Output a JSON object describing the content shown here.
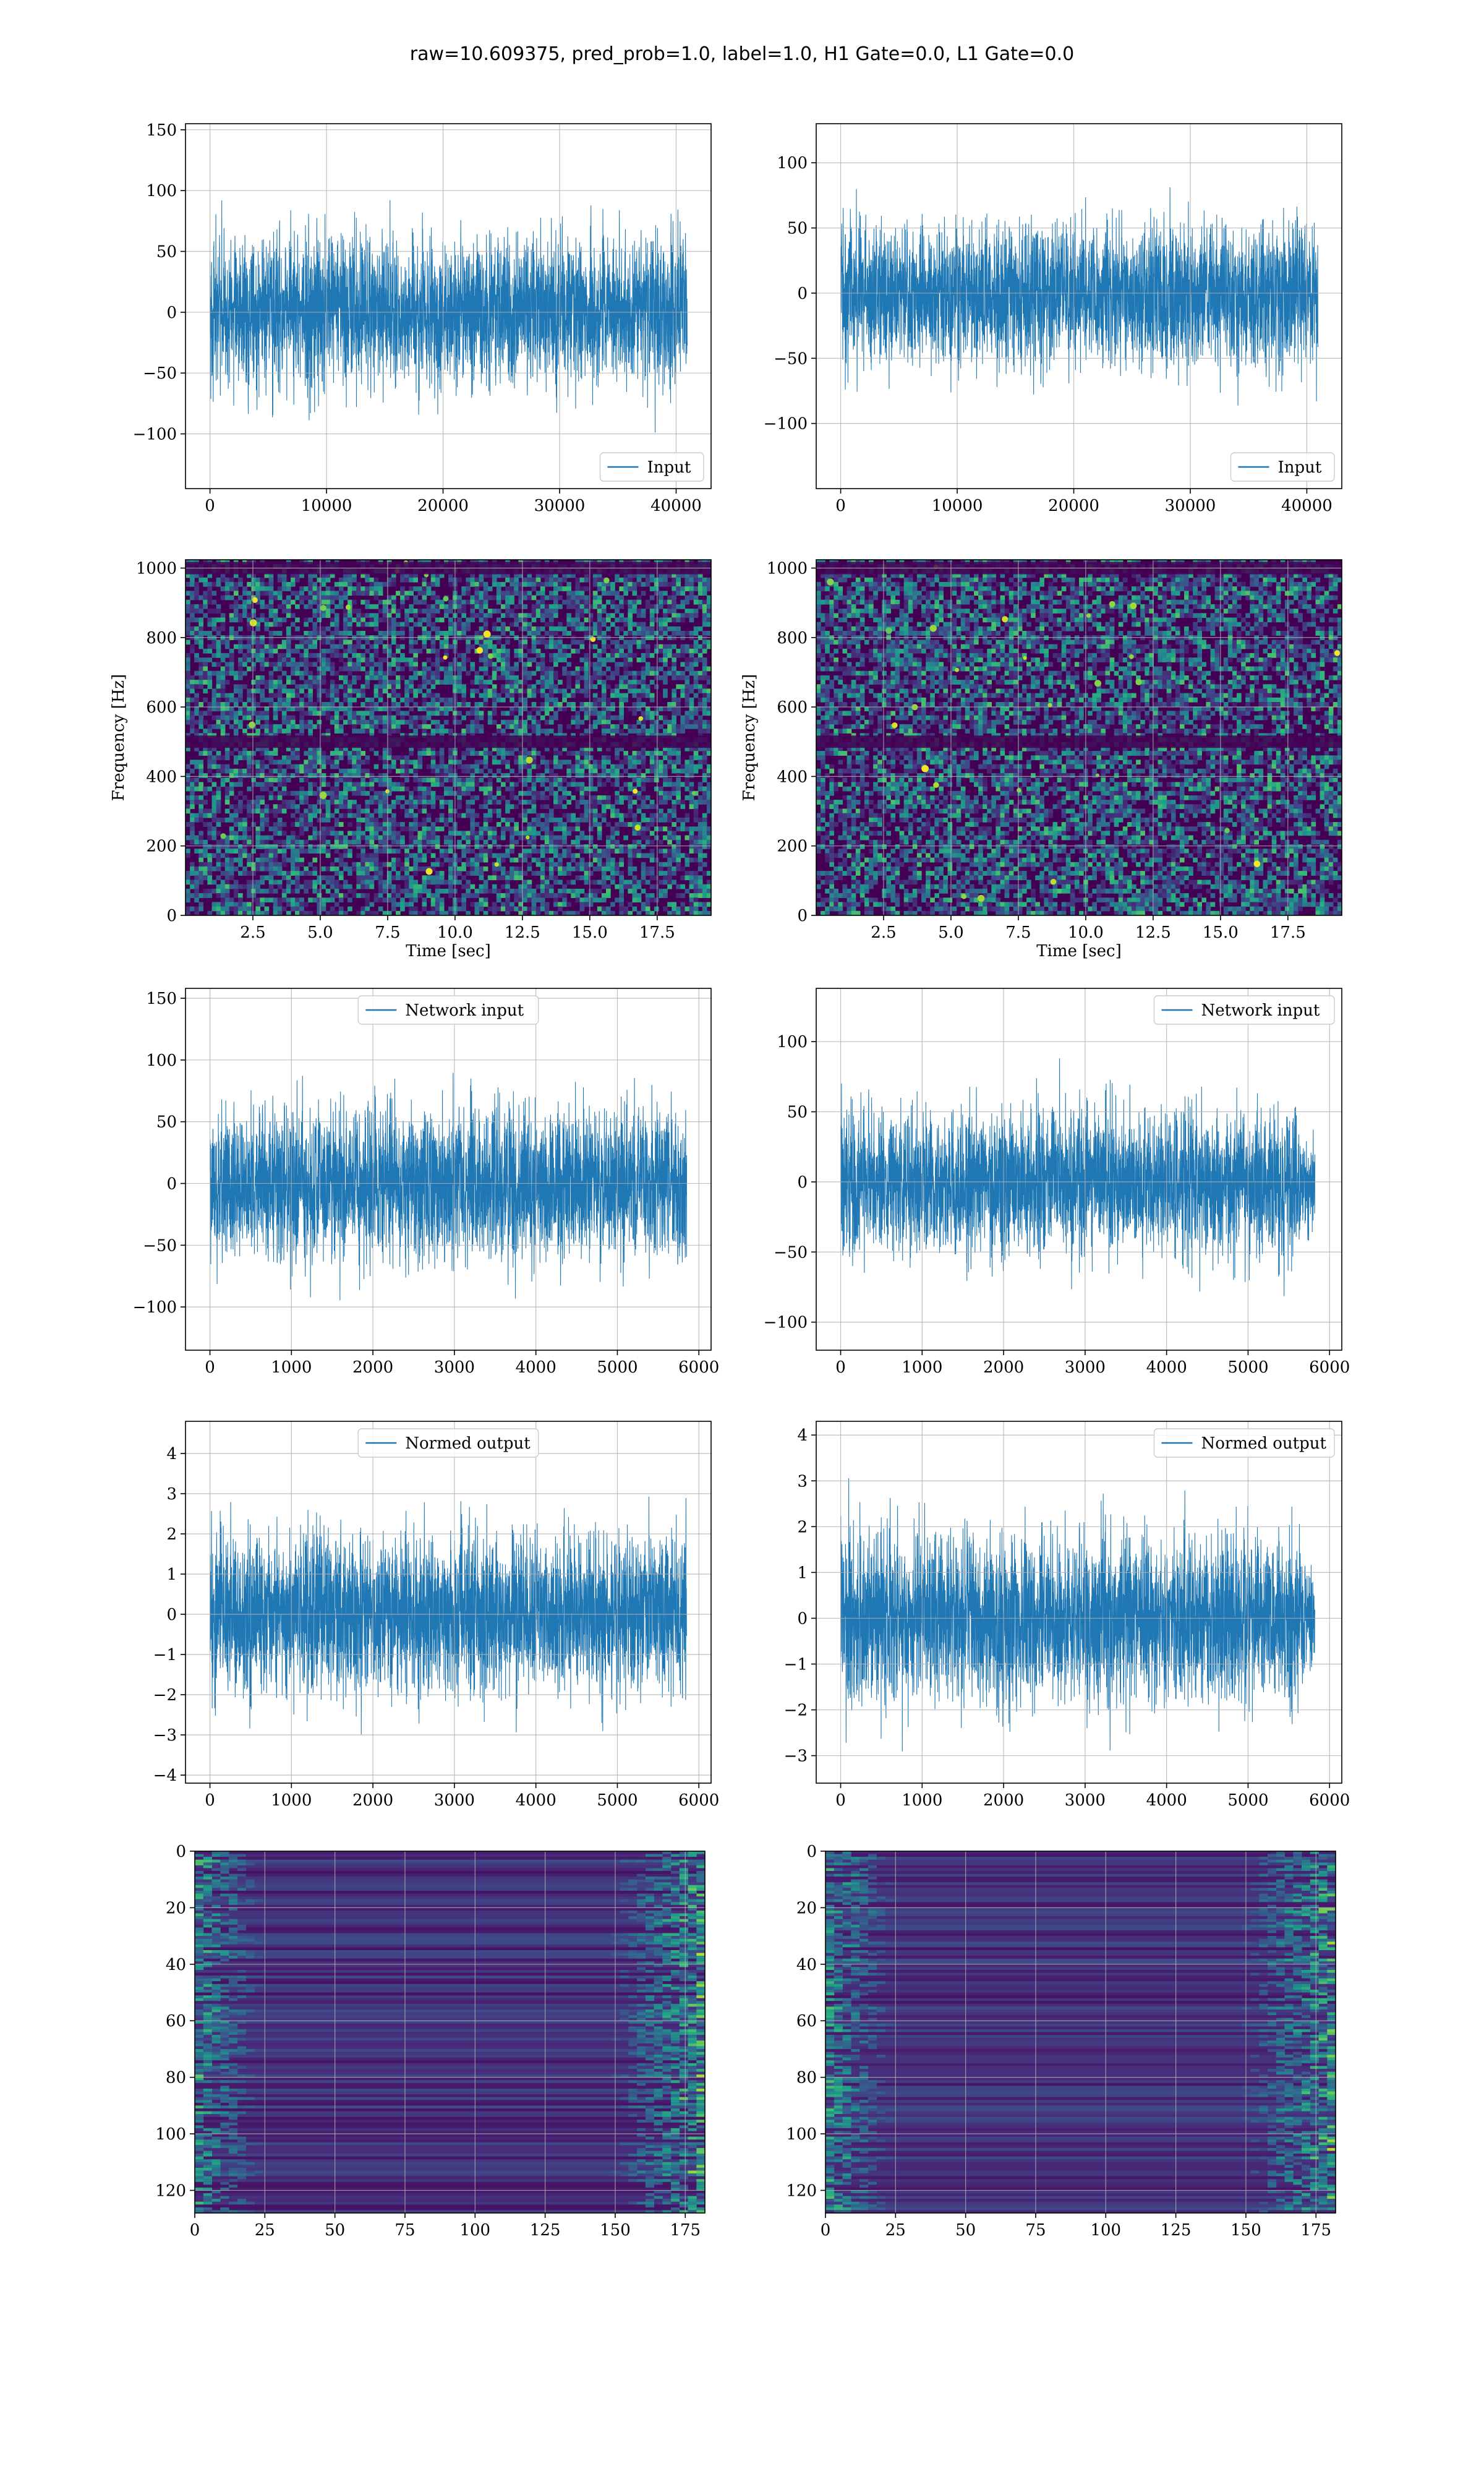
{
  "figure": {
    "suptitle": "raw=10.609375, pred_prob=1.0, label=1.0, H1 Gate=0.0, L1 Gate=0.0"
  },
  "colors": {
    "line": "#1f77b4",
    "grid": "#b0b0b0",
    "cmap_low": "#440154",
    "cmap_high": "#fde725"
  },
  "chart_data": [
    {
      "id": "ts-input-left",
      "type": "line",
      "style": "dense-noise",
      "series": [
        {
          "name": "Input",
          "x_range": [
            0,
            40960
          ],
          "amplitude_std": 30,
          "envelope": "flat"
        }
      ],
      "xlim": [
        -2100,
        43000
      ],
      "ylim": [
        -145,
        155
      ],
      "xticks": [
        0,
        10000,
        20000,
        30000,
        40000
      ],
      "yticks": [
        -100,
        -50,
        0,
        50,
        100,
        150
      ],
      "xlabel": "",
      "ylabel": "",
      "legend": "lower-right",
      "grid": true
    },
    {
      "id": "ts-input-right",
      "type": "line",
      "style": "dense-noise",
      "series": [
        {
          "name": "Input",
          "x_range": [
            0,
            40960
          ],
          "amplitude_std": 27,
          "envelope": "flat"
        }
      ],
      "xlim": [
        -2100,
        43000
      ],
      "ylim": [
        -150,
        130
      ],
      "xticks": [
        0,
        10000,
        20000,
        30000,
        40000
      ],
      "yticks": [
        -100,
        -50,
        0,
        50,
        100
      ],
      "xlabel": "",
      "ylabel": "",
      "legend": "lower-right",
      "grid": true
    },
    {
      "id": "spec-left",
      "type": "heatmap",
      "style": "spectrogram",
      "xlim": [
        0,
        19.5
      ],
      "ylim": [
        0,
        1024
      ],
      "xticks": [
        2.5,
        5.0,
        7.5,
        10.0,
        12.5,
        15.0,
        17.5
      ],
      "yticks": [
        0,
        200,
        400,
        600,
        800,
        1000
      ],
      "xtick_labels": [
        "2.5",
        "5.0",
        "7.5",
        "10.0",
        "12.5",
        "15.0",
        "17.5"
      ],
      "xlabel": "Time [sec]",
      "ylabel": "Frequency [Hz]",
      "dark_bands_hz": [
        500,
        1000
      ],
      "grid": true
    },
    {
      "id": "spec-right",
      "type": "heatmap",
      "style": "spectrogram",
      "xlim": [
        0,
        19.5
      ],
      "ylim": [
        0,
        1024
      ],
      "xticks": [
        2.5,
        5.0,
        7.5,
        10.0,
        12.5,
        15.0,
        17.5
      ],
      "yticks": [
        0,
        200,
        400,
        600,
        800,
        1000
      ],
      "xtick_labels": [
        "2.5",
        "5.0",
        "7.5",
        "10.0",
        "12.5",
        "15.0",
        "17.5"
      ],
      "xlabel": "Time [sec]",
      "ylabel": "Frequency [Hz]",
      "dark_bands_hz": [
        500,
        1000
      ],
      "grid": true
    },
    {
      "id": "net-input-left",
      "type": "line",
      "style": "dense-noise",
      "series": [
        {
          "name": "Network input",
          "x_range": [
            0,
            5850
          ],
          "amplitude_std": 30,
          "envelope": "flat"
        }
      ],
      "xlim": [
        -300,
        6150
      ],
      "ylim": [
        -135,
        158
      ],
      "xticks": [
        0,
        1000,
        2000,
        3000,
        4000,
        5000,
        6000
      ],
      "yticks": [
        -100,
        -50,
        0,
        50,
        100,
        150
      ],
      "xlabel": "",
      "ylabel": "",
      "legend": "upper-center",
      "grid": true
    },
    {
      "id": "net-input-right",
      "type": "line",
      "style": "dense-noise",
      "series": [
        {
          "name": "Network input",
          "x_range": [
            0,
            5820
          ],
          "amplitude_std": 25,
          "envelope": "taper-end"
        }
      ],
      "xlim": [
        -300,
        6150
      ],
      "ylim": [
        -120,
        138
      ],
      "xticks": [
        0,
        1000,
        2000,
        3000,
        4000,
        5000,
        6000
      ],
      "yticks": [
        -100,
        -50,
        0,
        50,
        100
      ],
      "xlabel": "",
      "ylabel": "",
      "legend": "upper-right",
      "grid": true
    },
    {
      "id": "normed-left",
      "type": "line",
      "style": "dense-noise",
      "series": [
        {
          "name": "Normed output",
          "x_range": [
            0,
            5850
          ],
          "amplitude_std": 0.95,
          "envelope": "flat"
        }
      ],
      "xlim": [
        -300,
        6150
      ],
      "ylim": [
        -4.2,
        4.8
      ],
      "xticks": [
        0,
        1000,
        2000,
        3000,
        4000,
        5000,
        6000
      ],
      "yticks": [
        -4,
        -3,
        -2,
        -1,
        0,
        1,
        2,
        3,
        4
      ],
      "xlabel": "",
      "ylabel": "",
      "legend": "upper-center",
      "grid": true
    },
    {
      "id": "normed-right",
      "type": "line",
      "style": "dense-noise",
      "series": [
        {
          "name": "Normed output",
          "x_range": [
            0,
            5820
          ],
          "amplitude_std": 0.9,
          "envelope": "taper-end"
        }
      ],
      "xlim": [
        -300,
        6150
      ],
      "ylim": [
        -3.6,
        4.3
      ],
      "xticks": [
        0,
        1000,
        2000,
        3000,
        4000,
        5000,
        6000
      ],
      "yticks": [
        -3,
        -2,
        -1,
        0,
        1,
        2,
        3,
        4
      ],
      "xlabel": "",
      "ylabel": "",
      "legend": "upper-right",
      "grid": true
    },
    {
      "id": "features-left",
      "type": "heatmap",
      "style": "feature-map",
      "xlim": [
        0,
        182
      ],
      "ylim": [
        128,
        0
      ],
      "rows": 128,
      "cols": 182,
      "xticks": [
        0,
        25,
        50,
        75,
        100,
        125,
        150,
        175
      ],
      "yticks": [
        0,
        20,
        40,
        60,
        80,
        100,
        120
      ],
      "xlabel": "",
      "ylabel": "",
      "bright_edges": "left-and-right",
      "grid": true
    },
    {
      "id": "features-right",
      "type": "heatmap",
      "style": "feature-map",
      "xlim": [
        0,
        182
      ],
      "ylim": [
        128,
        0
      ],
      "rows": 128,
      "cols": 182,
      "xticks": [
        0,
        25,
        50,
        75,
        100,
        125,
        150,
        175
      ],
      "yticks": [
        0,
        20,
        40,
        60,
        80,
        100,
        120
      ],
      "xlabel": "",
      "ylabel": "",
      "bright_edges": "left-and-right",
      "grid": true
    }
  ]
}
